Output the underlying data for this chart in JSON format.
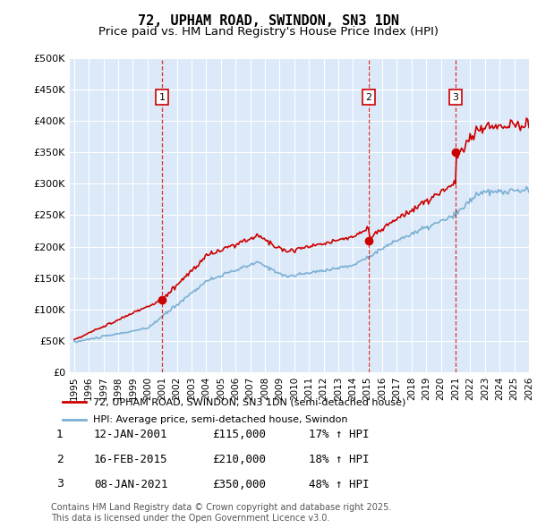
{
  "title": "72, UPHAM ROAD, SWINDON, SN3 1DN",
  "subtitle": "Price paid vs. HM Land Registry's House Price Index (HPI)",
  "ylim": [
    0,
    500000
  ],
  "yticks": [
    0,
    50000,
    100000,
    150000,
    200000,
    250000,
    300000,
    350000,
    400000,
    450000,
    500000
  ],
  "ytick_labels": [
    "£0",
    "£50K",
    "£100K",
    "£150K",
    "£200K",
    "£250K",
    "£300K",
    "£350K",
    "£400K",
    "£450K",
    "£500K"
  ],
  "background_color": "#dce9f8",
  "line_color_red": "#cc0000",
  "line_color_blue": "#7ab0d4",
  "sale_prices": [
    115000,
    210000,
    350000
  ],
  "sale_labels": [
    "1",
    "2",
    "3"
  ],
  "sale_hpi_pct": [
    "17%",
    "18%",
    "48%"
  ],
  "sale_date_strs": [
    "12-JAN-2001",
    "16-FEB-2015",
    "08-JAN-2021"
  ],
  "sale_price_strs": [
    "£115,000",
    "£210,000",
    "£350,000"
  ],
  "legend_label_red": "72, UPHAM ROAD, SWINDON, SN3 1DN (semi-detached house)",
  "legend_label_blue": "HPI: Average price, semi-detached house, Swindon",
  "footer": "Contains HM Land Registry data © Crown copyright and database right 2025.\nThis data is licensed under the Open Government Licence v3.0.",
  "title_fontsize": 11,
  "subtitle_fontsize": 9.5,
  "x_start_year": 1995,
  "x_end_year": 2026
}
